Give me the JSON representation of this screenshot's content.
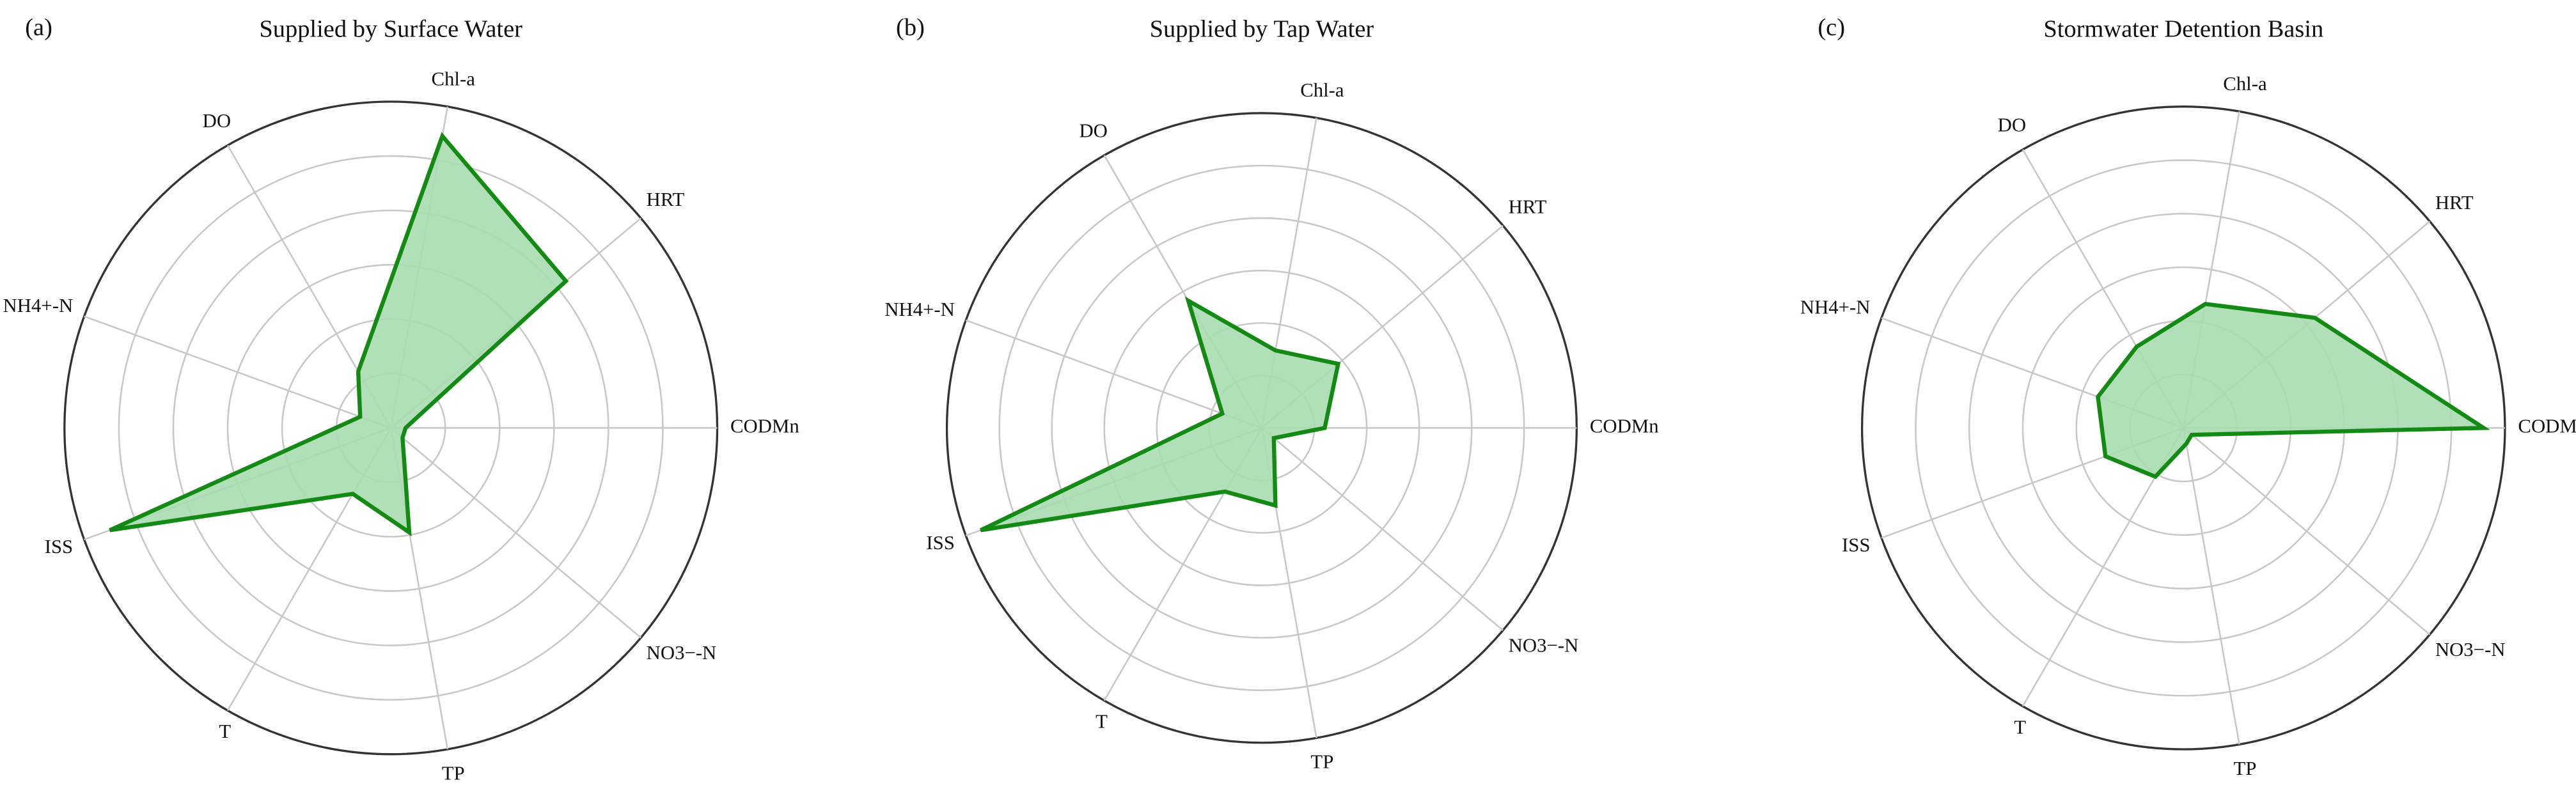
{
  "chart_data": [
    {
      "type": "radar",
      "panel_label": "(a)",
      "title": "Supplied by Surface Water",
      "categories": [
        "CODMn",
        "HRT",
        "Chl-a",
        "DO",
        "NH4+-N",
        "ISS",
        "T",
        "TP",
        "NO3−-N"
      ],
      "values": [
        0.27,
        4.2,
        5.45,
        1.2,
        0.6,
        5.5,
        1.4,
        1.95,
        0.28
      ],
      "color": "#138a13",
      "fill": "#a8dcb0",
      "rlim": [
        0,
        6
      ],
      "rticks": [
        1,
        2,
        3,
        4,
        5,
        6
      ],
      "grid": true
    },
    {
      "type": "radar",
      "panel_label": "(b)",
      "title": "Supplied by Tap Water",
      "categories": [
        "CODMn",
        "HRT",
        "Chl-a",
        "DO",
        "NH4+-N",
        "ISS",
        "T",
        "TP",
        "NO3−-N"
      ],
      "values": [
        1.2,
        1.9,
        1.5,
        2.8,
        0.8,
        5.7,
        1.4,
        1.5,
        0.3
      ],
      "color": "#138a13",
      "fill": "#a8dcb0",
      "rlim": [
        0,
        6
      ],
      "rticks": [
        1,
        2,
        3,
        4,
        5,
        6
      ],
      "grid": true
    },
    {
      "type": "radar",
      "panel_label": "(c)",
      "title": "Stormwater Detention Basin",
      "categories": [
        "CODMn",
        "HRT",
        "Chl-a",
        "DO",
        "NH4+-N",
        "ISS",
        "T",
        "TP",
        "NO3−-N"
      ],
      "values": [
        5.6,
        3.2,
        2.35,
        1.75,
        1.7,
        1.55,
        1.05,
        0.3,
        0.2
      ],
      "color": "#138a13",
      "fill": "#a8dcb0",
      "rlim": [
        0,
        6
      ],
      "rticks": [
        1,
        2,
        3,
        4,
        5,
        6
      ],
      "grid": true
    }
  ]
}
